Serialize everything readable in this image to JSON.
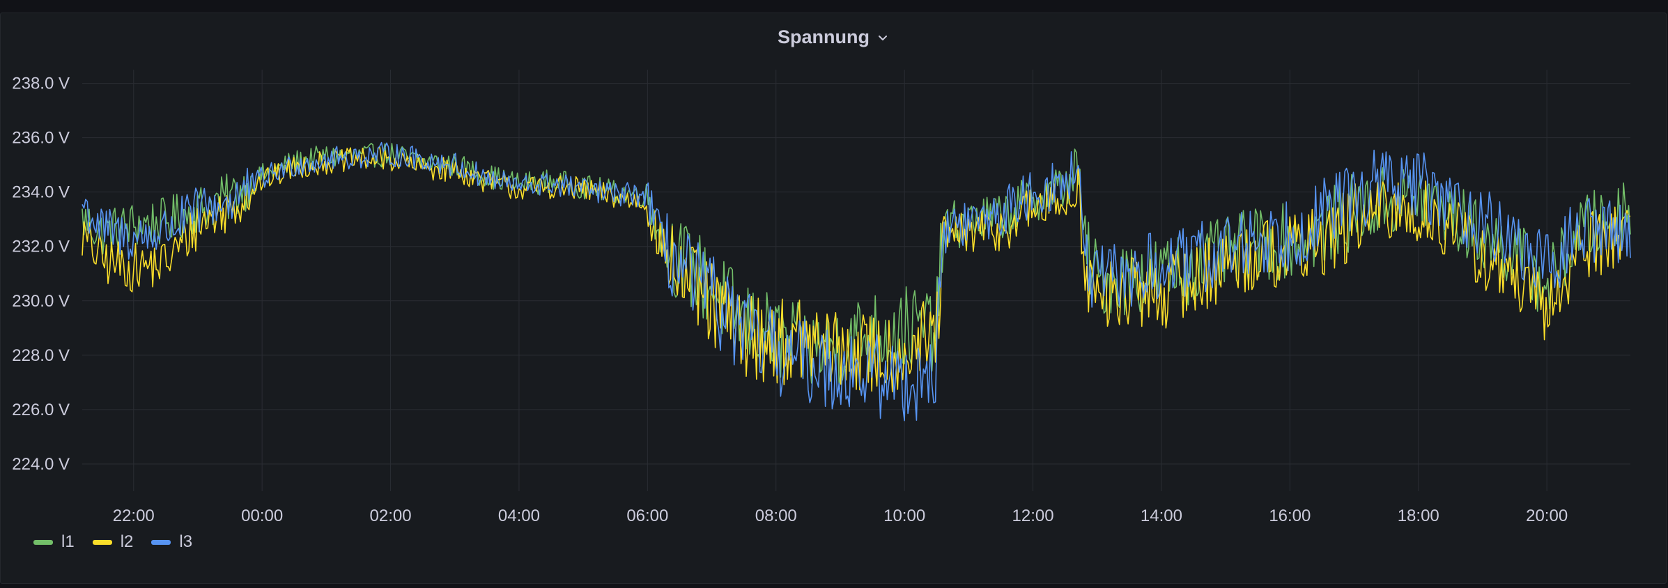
{
  "panel": {
    "title": "Spannung"
  },
  "colors": {
    "l1": "#73bf69",
    "l2": "#fade2a",
    "l3": "#5794f2",
    "grid": "#2a2d33",
    "text": "#ccccdc"
  },
  "chart_data": {
    "type": "line",
    "title": "Spannung",
    "unit": "V",
    "ylim": [
      223.0,
      238.5
    ],
    "yticks": [
      224.0,
      226.0,
      228.0,
      230.0,
      232.0,
      234.0,
      236.0,
      238.0
    ],
    "ytick_labels": [
      "224.0 V",
      "226.0 V",
      "228.0 V",
      "230.0 V",
      "232.0 V",
      "234.0 V",
      "236.0 V",
      "238.0 V"
    ],
    "x_range_hours": [
      21.2,
      45.3
    ],
    "xticks": [
      22,
      24,
      26,
      28,
      30,
      32,
      34,
      36,
      38,
      40,
      42,
      44
    ],
    "xtick_labels": [
      "22:00",
      "00:00",
      "02:00",
      "04:00",
      "06:00",
      "08:00",
      "10:00",
      "12:00",
      "14:00",
      "16:00",
      "18:00",
      "20:00"
    ],
    "grid": true,
    "legend_position": "bottom-left",
    "series": [
      {
        "name": "l1",
        "color": "#73bf69",
        "x": [
          21.2,
          21.5,
          22.0,
          22.5,
          23.0,
          23.5,
          24.0,
          24.5,
          25.0,
          25.5,
          26.0,
          26.5,
          27.0,
          27.5,
          28.0,
          28.5,
          29.0,
          29.5,
          30.0,
          30.2,
          30.5,
          31.0,
          31.5,
          32.0,
          32.5,
          33.0,
          33.5,
          34.0,
          34.5,
          34.6,
          35.0,
          35.5,
          36.0,
          36.5,
          36.7,
          36.8,
          37.0,
          37.5,
          38.0,
          38.5,
          39.0,
          39.5,
          40.0,
          40.5,
          41.0,
          41.5,
          42.0,
          42.5,
          43.0,
          43.5,
          44.0,
          44.5,
          45.0,
          45.3
        ],
        "y": [
          233.0,
          232.5,
          232.8,
          232.9,
          233.4,
          233.8,
          234.6,
          235.1,
          235.3,
          235.3,
          235.4,
          235.1,
          235.0,
          234.6,
          234.3,
          234.4,
          234.2,
          234.0,
          233.9,
          232.5,
          231.5,
          230.5,
          229.2,
          228.6,
          228.2,
          228.4,
          228.8,
          229.0,
          229.0,
          232.7,
          232.9,
          233.1,
          233.8,
          234.2,
          235.0,
          232.0,
          230.8,
          230.9,
          231.0,
          231.3,
          231.7,
          232.1,
          232.2,
          232.6,
          233.3,
          233.6,
          233.8,
          233.2,
          232.3,
          231.8,
          230.5,
          232.6,
          233.0,
          233.6
        ]
      },
      {
        "name": "l2",
        "color": "#fade2a",
        "x": [
          21.2,
          21.5,
          22.0,
          22.5,
          23.0,
          23.5,
          24.0,
          24.5,
          25.0,
          25.5,
          26.0,
          26.5,
          27.0,
          27.5,
          28.0,
          28.5,
          29.0,
          29.5,
          30.0,
          30.2,
          30.5,
          31.0,
          31.5,
          32.0,
          32.5,
          33.0,
          33.5,
          34.0,
          34.5,
          34.6,
          35.0,
          35.5,
          36.0,
          36.5,
          36.7,
          36.8,
          37.0,
          37.5,
          38.0,
          38.5,
          39.0,
          39.5,
          40.0,
          40.5,
          41.0,
          41.5,
          42.0,
          42.5,
          43.0,
          43.5,
          44.0,
          44.5,
          45.0,
          45.3
        ],
        "y": [
          232.4,
          231.5,
          231.2,
          231.4,
          232.8,
          233.4,
          234.4,
          234.9,
          235.1,
          235.2,
          235.2,
          234.9,
          234.8,
          234.4,
          234.1,
          234.2,
          234.1,
          233.8,
          233.6,
          232.0,
          231.0,
          229.8,
          228.8,
          228.5,
          228.5,
          228.1,
          228.0,
          228.2,
          228.6,
          232.2,
          232.5,
          232.6,
          233.4,
          233.6,
          234.4,
          231.2,
          230.0,
          230.3,
          230.3,
          230.8,
          231.3,
          231.8,
          231.8,
          232.2,
          232.9,
          233.2,
          233.3,
          232.7,
          231.6,
          230.8,
          229.5,
          231.9,
          232.4,
          232.8
        ]
      },
      {
        "name": "l3",
        "color": "#5794f2",
        "x": [
          21.2,
          21.5,
          22.0,
          22.5,
          23.0,
          23.5,
          24.0,
          24.5,
          25.0,
          25.5,
          26.0,
          26.5,
          27.0,
          27.5,
          28.0,
          28.5,
          29.0,
          29.5,
          30.0,
          30.2,
          30.5,
          31.0,
          31.5,
          32.0,
          32.5,
          33.0,
          33.5,
          34.0,
          34.5,
          34.6,
          35.0,
          35.5,
          36.0,
          36.5,
          36.7,
          36.8,
          37.0,
          37.5,
          38.0,
          38.5,
          39.0,
          39.5,
          40.0,
          40.5,
          41.0,
          41.5,
          42.0,
          42.5,
          43.0,
          43.5,
          44.0,
          44.5,
          45.0,
          45.3
        ],
        "y": [
          233.6,
          232.6,
          232.3,
          232.6,
          233.3,
          233.7,
          234.5,
          235.0,
          235.2,
          235.3,
          235.4,
          235.2,
          235.0,
          234.5,
          234.2,
          234.3,
          234.1,
          233.9,
          233.9,
          232.2,
          231.2,
          230.1,
          228.8,
          228.1,
          227.7,
          227.5,
          227.3,
          227.0,
          227.5,
          232.6,
          232.9,
          233.2,
          234.0,
          234.3,
          235.0,
          231.6,
          230.6,
          231.0,
          231.2,
          231.4,
          231.9,
          232.3,
          232.5,
          233.1,
          233.9,
          234.4,
          234.3,
          233.6,
          232.9,
          232.2,
          231.1,
          232.6,
          232.7,
          232.4
        ]
      }
    ]
  }
}
